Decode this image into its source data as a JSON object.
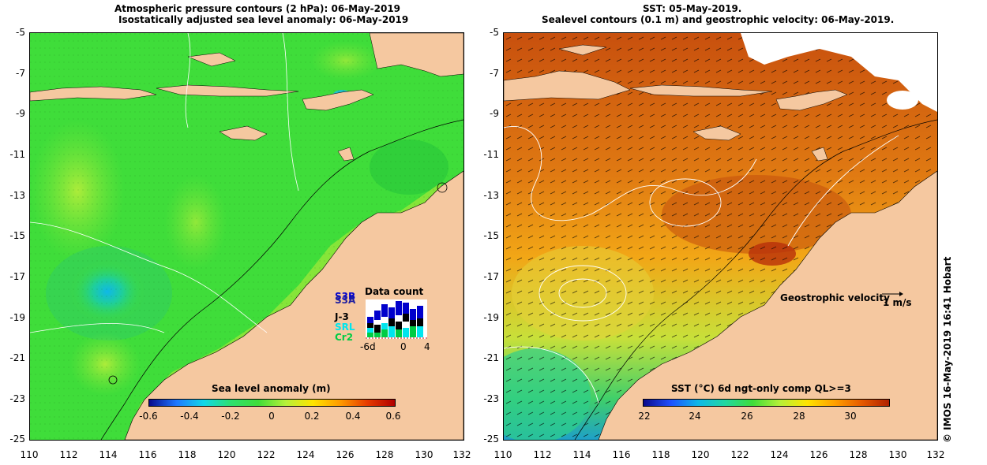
{
  "left_panel": {
    "title_line1": "Atmospheric pressure contours (2 hPa): 06-May-2019",
    "title_line2": "Isostatically adjusted sea level anomaly: 06-May-2019",
    "colorbar_title": "Sea level anomaly (m)",
    "colorbar_ticks": [
      "-0.6",
      "-0.4",
      "-0.2",
      "0",
      "0.2",
      "0.4",
      "0.6"
    ],
    "data_count": {
      "title": "Data count",
      "missions": [
        {
          "name": "S3B",
          "color": "#0000cc"
        },
        {
          "name": "S3A",
          "color": "#1f1fa0"
        },
        {
          "name": "J-3",
          "color": "#000000"
        },
        {
          "name": "SRL",
          "color": "#00e5ee"
        },
        {
          "name": "Cr2",
          "color": "#00cc44"
        }
      ],
      "xticks": [
        "-6d",
        "0",
        "4"
      ]
    }
  },
  "right_panel": {
    "title_line1": "SST: 05-May-2019.",
    "title_line2": "Sealevel contours (0.1 m) and geostrophic velocity: 06-May-2019.",
    "colorbar_title": "SST (°C) 6d ngt-only comp QL>=3",
    "colorbar_ticks": [
      "22",
      "24",
      "26",
      "28",
      "30"
    ],
    "geostrophic_label": "Geostrophic velocity",
    "scale_label": "1 m/s"
  },
  "axes": {
    "yticks": [
      "-5",
      "-7",
      "-9",
      "-11",
      "-13",
      "-15",
      "-17",
      "-19",
      "-21",
      "-23",
      "-25"
    ],
    "xticks": [
      "110",
      "112",
      "114",
      "116",
      "118",
      "120",
      "122",
      "124",
      "126",
      "128",
      "130",
      "132"
    ]
  },
  "credit": "© IMOS 16-May-2019 16:41 Hobart",
  "colors": {
    "land": "#f5c8a0",
    "ocean_sla": "#3fdd3a",
    "ocean_sst": "#d96a12"
  }
}
